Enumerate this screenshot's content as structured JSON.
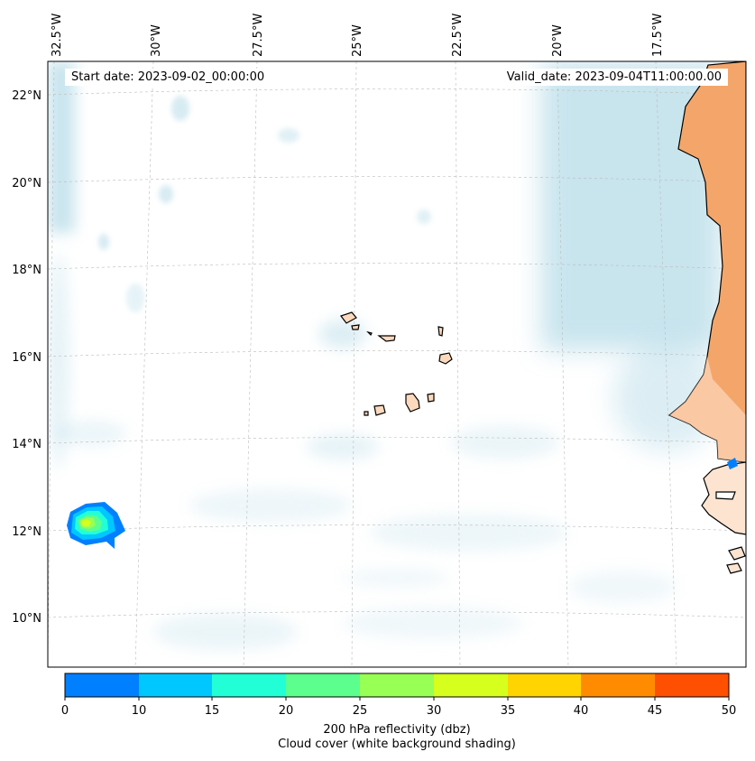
{
  "map": {
    "start_date": "Start date: 2023-09-02_00:00:00",
    "valid_date": "Valid_date: 2023-09-04T11:00:00.00",
    "lon_labels": [
      "32.5°W",
      "30°W",
      "27.5°W",
      "25°W",
      "22.5°W",
      "20°W",
      "17.5°W"
    ],
    "lat_labels": [
      "22°N",
      "20°N",
      "18°N",
      "16°N",
      "14°N",
      "12°N",
      "10°N"
    ],
    "gridlines": true
  },
  "colorbar": {
    "ticks": [
      "0",
      "10",
      "15",
      "20",
      "25",
      "30",
      "35",
      "40",
      "45",
      "50"
    ],
    "colors": [
      "#0080ff",
      "#00c8ff",
      "#22ffd6",
      "#5cff8e",
      "#98ff55",
      "#d6ff1e",
      "#ffd400",
      "#ff8c00",
      "#ff4f00"
    ],
    "label_line1": "200 hPa reflectivity (dbz)",
    "label_line2": "Cloud cover (white background shading)"
  },
  "colors": {
    "cloud": "#9ccfe0",
    "land": "#f4a66a",
    "land_light": "#fcd9bd",
    "coastline": "#000000"
  }
}
